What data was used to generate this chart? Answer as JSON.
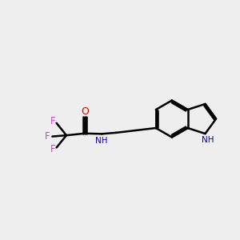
{
  "bg_color": "#eeeeee",
  "bond_color": "#000000",
  "O_color": "#dd0000",
  "N_color": "#0000cc",
  "F_color": "#cc44cc",
  "line_width": 1.8,
  "inner_dbo": 0.08,
  "outer_dbo": 0.06,
  "xlim": [
    0,
    10
  ],
  "ylim": [
    2,
    8
  ],
  "figsize": [
    3.0,
    3.0
  ],
  "dpi": 100
}
